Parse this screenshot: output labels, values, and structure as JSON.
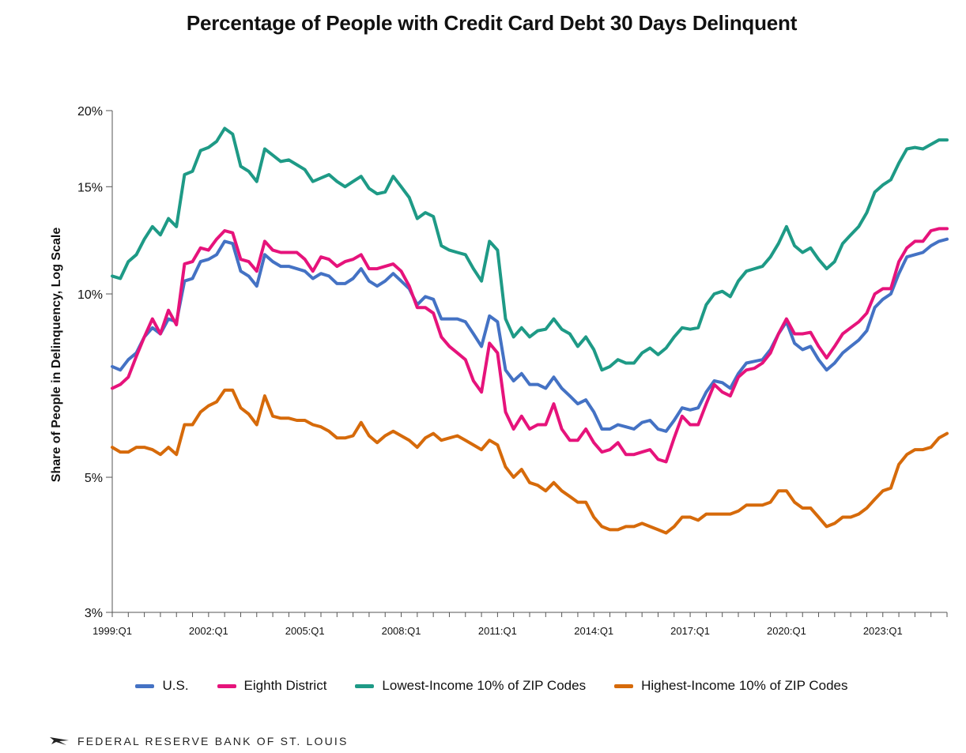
{
  "footer": {
    "logo_icon": "eagle-icon",
    "org_name": "FEDERAL RESERVE BANK OF ST. LOUIS"
  },
  "chart_data": {
    "type": "line",
    "title": "Percentage of People with Credit Card Debt 30 Days Delinquent",
    "xlabel": "",
    "ylabel": "Share of People in Delinquency, Log Scale",
    "yscale": "log",
    "ylim": [
      3,
      20
    ],
    "yticks": [
      3,
      5,
      10,
      15,
      20
    ],
    "ytick_labels": [
      "3%",
      "5%",
      "10%",
      "15%",
      "20%"
    ],
    "x_start": "1999:Q1",
    "x_end": "2024:Q4",
    "xtick_labels": [
      "1999:Q1",
      "2002:Q1",
      "2005:Q1",
      "2008:Q1",
      "2011:Q1",
      "2014:Q1",
      "2017:Q1",
      "2020:Q1",
      "2023:Q1"
    ],
    "grid": false,
    "legend_position": "bottom",
    "series": [
      {
        "name": "U.S.",
        "color": "#4472C4",
        "values": [
          7.6,
          7.5,
          7.8,
          8.0,
          8.5,
          8.8,
          8.6,
          9.1,
          9.0,
          10.5,
          10.6,
          11.3,
          11.4,
          11.6,
          12.2,
          12.1,
          10.9,
          10.7,
          10.3,
          11.6,
          11.3,
          11.1,
          11.1,
          11.0,
          10.9,
          10.6,
          10.8,
          10.7,
          10.4,
          10.4,
          10.6,
          11.0,
          10.5,
          10.3,
          10.5,
          10.8,
          10.5,
          10.2,
          9.6,
          9.9,
          9.8,
          9.1,
          9.1,
          9.1,
          9.0,
          8.6,
          8.2,
          9.2,
          9.0,
          7.5,
          7.2,
          7.4,
          7.1,
          7.1,
          7.0,
          7.3,
          7.0,
          6.8,
          6.6,
          6.7,
          6.4,
          6.0,
          6.0,
          6.1,
          6.05,
          6.0,
          6.15,
          6.2,
          6.0,
          5.95,
          6.2,
          6.5,
          6.45,
          6.5,
          6.9,
          7.2,
          7.15,
          7.0,
          7.4,
          7.7,
          7.75,
          7.8,
          8.1,
          8.6,
          9.0,
          8.3,
          8.1,
          8.2,
          7.8,
          7.5,
          7.7,
          8.0,
          8.2,
          8.4,
          8.7,
          9.5,
          9.8,
          10.0,
          10.8,
          11.5,
          11.6,
          11.7,
          12.0,
          12.2,
          12.3
        ]
      },
      {
        "name": "Eighth District",
        "color": "#E6137B",
        "values": [
          7.0,
          7.1,
          7.3,
          7.9,
          8.5,
          9.1,
          8.6,
          9.4,
          8.9,
          11.2,
          11.3,
          11.9,
          11.8,
          12.3,
          12.7,
          12.6,
          11.4,
          11.3,
          10.9,
          12.2,
          11.8,
          11.7,
          11.7,
          11.7,
          11.4,
          10.9,
          11.5,
          11.4,
          11.1,
          11.3,
          11.4,
          11.6,
          11.0,
          11.0,
          11.1,
          11.2,
          10.9,
          10.3,
          9.5,
          9.5,
          9.3,
          8.5,
          8.2,
          8.0,
          7.8,
          7.2,
          6.9,
          8.3,
          8.0,
          6.4,
          6.0,
          6.3,
          6.0,
          6.1,
          6.1,
          6.6,
          6.0,
          5.75,
          5.75,
          6.0,
          5.7,
          5.5,
          5.55,
          5.7,
          5.45,
          5.45,
          5.5,
          5.55,
          5.35,
          5.3,
          5.8,
          6.3,
          6.1,
          6.1,
          6.6,
          7.1,
          6.9,
          6.8,
          7.3,
          7.5,
          7.55,
          7.7,
          8.0,
          8.6,
          9.1,
          8.6,
          8.6,
          8.65,
          8.2,
          7.85,
          8.2,
          8.6,
          8.8,
          9.0,
          9.3,
          10.0,
          10.2,
          10.2,
          11.3,
          11.9,
          12.2,
          12.2,
          12.7,
          12.8,
          12.8
        ]
      },
      {
        "name": "Lowest-Income 10% of ZIP Codes",
        "color": "#1E9A86",
        "values": [
          10.7,
          10.6,
          11.3,
          11.6,
          12.3,
          12.9,
          12.5,
          13.3,
          12.9,
          15.7,
          15.9,
          17.2,
          17.4,
          17.8,
          18.7,
          18.3,
          16.2,
          15.9,
          15.3,
          17.3,
          16.9,
          16.5,
          16.6,
          16.3,
          16.0,
          15.3,
          15.5,
          15.7,
          15.3,
          15.0,
          15.3,
          15.6,
          14.9,
          14.6,
          14.7,
          15.6,
          15.0,
          14.4,
          13.3,
          13.6,
          13.4,
          12.0,
          11.8,
          11.7,
          11.6,
          11.0,
          10.5,
          12.2,
          11.8,
          9.1,
          8.5,
          8.8,
          8.5,
          8.7,
          8.75,
          9.1,
          8.75,
          8.6,
          8.2,
          8.5,
          8.1,
          7.5,
          7.6,
          7.8,
          7.7,
          7.7,
          8.0,
          8.15,
          7.95,
          8.15,
          8.5,
          8.8,
          8.75,
          8.8,
          9.6,
          10.0,
          10.1,
          9.9,
          10.5,
          10.9,
          11.0,
          11.1,
          11.5,
          12.1,
          12.9,
          12.0,
          11.7,
          11.9,
          11.4,
          11.0,
          11.3,
          12.1,
          12.5,
          12.9,
          13.6,
          14.7,
          15.1,
          15.4,
          16.4,
          17.3,
          17.4,
          17.3,
          17.6,
          17.9,
          17.9
        ]
      },
      {
        "name": "Highest-Income 10% of ZIP Codes",
        "color": "#D66A0A",
        "values": [
          5.6,
          5.5,
          5.5,
          5.6,
          5.6,
          5.55,
          5.45,
          5.6,
          5.45,
          6.1,
          6.1,
          6.4,
          6.55,
          6.65,
          6.95,
          6.95,
          6.5,
          6.35,
          6.1,
          6.8,
          6.3,
          6.25,
          6.25,
          6.2,
          6.2,
          6.1,
          6.05,
          5.95,
          5.8,
          5.8,
          5.85,
          6.15,
          5.85,
          5.7,
          5.85,
          5.95,
          5.85,
          5.75,
          5.6,
          5.8,
          5.9,
          5.75,
          5.8,
          5.85,
          5.75,
          5.65,
          5.55,
          5.75,
          5.65,
          5.2,
          5.0,
          5.15,
          4.9,
          4.85,
          4.75,
          4.9,
          4.75,
          4.65,
          4.55,
          4.55,
          4.3,
          4.15,
          4.1,
          4.1,
          4.15,
          4.15,
          4.2,
          4.15,
          4.1,
          4.05,
          4.15,
          4.3,
          4.3,
          4.25,
          4.35,
          4.35,
          4.35,
          4.35,
          4.4,
          4.5,
          4.5,
          4.5,
          4.55,
          4.75,
          4.75,
          4.55,
          4.45,
          4.45,
          4.3,
          4.15,
          4.2,
          4.3,
          4.3,
          4.35,
          4.45,
          4.6,
          4.75,
          4.8,
          5.25,
          5.45,
          5.55,
          5.55,
          5.6,
          5.8,
          5.9
        ]
      }
    ]
  }
}
